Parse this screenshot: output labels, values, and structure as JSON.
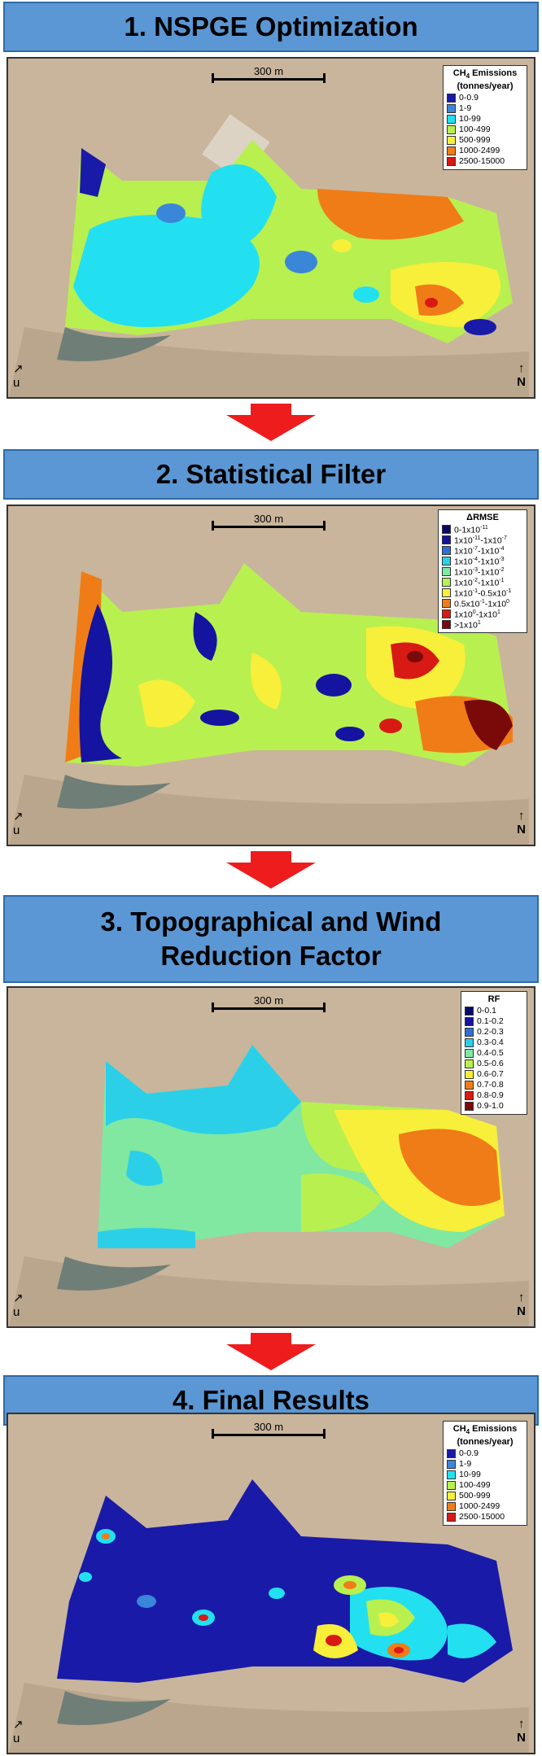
{
  "stages": [
    {
      "title": "1. NSPGE Optimization",
      "legend_title": "CH4 Emissions (tonnes/year)",
      "legend_title_line1": "CH",
      "legend_title_sub": "4",
      "legend_title_line1b": " Emissions",
      "legend_title_line2": "(tonnes/year)",
      "legend": [
        {
          "label": "0-0.9",
          "color": "#1a1aa8"
        },
        {
          "label": "1-9",
          "color": "#3a86d8"
        },
        {
          "label": "10-99",
          "color": "#22e0f0"
        },
        {
          "label": "100-499",
          "color": "#b8f050"
        },
        {
          "label": "500-999",
          "color": "#f7ef3a"
        },
        {
          "label": "1000-2499",
          "color": "#f07c18"
        },
        {
          "label": "2500-15000",
          "color": "#d81a14"
        }
      ]
    },
    {
      "title": "2. Statistical Filter",
      "legend_title": "ΔRMSE",
      "legend": [
        {
          "label": "0-1x10-11",
          "base": "0-1x10",
          "exp": "-11",
          "color": "#0a0a66"
        },
        {
          "label": "1x10-11-1x10-7",
          "base": "1x10",
          "exp": "-11",
          "mid": "-1x10",
          "exp2": "-7",
          "color": "#1414a0"
        },
        {
          "label": "1x10-7-1x10-4",
          "base": "1x10",
          "exp": "-7",
          "mid": "-1x10",
          "exp2": "-4",
          "color": "#2f6fd4"
        },
        {
          "label": "1x10-4-1x10-3",
          "base": "1x10",
          "exp": "-4",
          "mid": "-1x10",
          "exp2": "-3",
          "color": "#2bd0e8"
        },
        {
          "label": "1x10-3-1x10-2",
          "base": "1x10",
          "exp": "-3",
          "mid": "-1x10",
          "exp2": "-2",
          "color": "#80e8a0"
        },
        {
          "label": "1x10-2-1x10-1",
          "base": "1x10",
          "exp": "-2",
          "mid": "-1x10",
          "exp2": "-1",
          "color": "#b8f050"
        },
        {
          "label": "1x10-1-0.5x10-1",
          "base": "1x10",
          "exp": "-1",
          "mid": "-0.5x10",
          "exp2": "-1",
          "color": "#f7ef3a"
        },
        {
          "label": "0.5x10-1-1x100",
          "base": "0.5x10",
          "exp": "-1",
          "mid": "-1x10",
          "exp2": "0",
          "color": "#f07c18"
        },
        {
          "label": "1x100-1x101",
          "base": "1x10",
          "exp": "0",
          "mid": "-1x10",
          "exp2": "1",
          "color": "#d81a14"
        },
        {
          "label": ">1x101",
          "base": ">1x10",
          "exp": "1",
          "color": "#7a0a0a"
        }
      ]
    },
    {
      "title": "3. Topographical and Wind",
      "title2": "Reduction Factor",
      "legend_title": "RF",
      "legend": [
        {
          "label": "0-0.1",
          "color": "#0a0a66"
        },
        {
          "label": "0.1-0.2",
          "color": "#1414a0"
        },
        {
          "label": "0.2-0.3",
          "color": "#2f6fd4"
        },
        {
          "label": "0.3-0.4",
          "color": "#2bd0e8"
        },
        {
          "label": "0.4-0.5",
          "color": "#80e8a0"
        },
        {
          "label": "0.5-0.6",
          "color": "#b8f050"
        },
        {
          "label": "0.6-0.7",
          "color": "#f7ef3a"
        },
        {
          "label": "0.7-0.8",
          "color": "#f07c18"
        },
        {
          "label": "0.8-0.9",
          "color": "#d81a14"
        },
        {
          "label": "0.9-1.0",
          "color": "#7a0a0a"
        }
      ]
    },
    {
      "title": "4. Final Results",
      "legend_title": "CH4 Emissions (tonnes/year)",
      "legend_title_line1": "CH",
      "legend_title_sub": "4",
      "legend_title_line1b": " Emissions",
      "legend_title_line2": "(tonnes/year)",
      "legend": [
        {
          "label": "0-0.9",
          "color": "#1a1aa8"
        },
        {
          "label": "1-9",
          "color": "#3a86d8"
        },
        {
          "label": "10-99",
          "color": "#22e0f0"
        },
        {
          "label": "100-499",
          "color": "#b8f050"
        },
        {
          "label": "500-999",
          "color": "#f7ef3a"
        },
        {
          "label": "1000-2499",
          "color": "#f07c18"
        },
        {
          "label": "2500-15000",
          "color": "#d81a14"
        }
      ]
    }
  ],
  "scale_label": "300 m",
  "wind_label": "u",
  "north_label": "N",
  "colors": {
    "banner": "#5b97d4",
    "arrow": "#ee1c1c",
    "terrain": "#c9b59c"
  }
}
